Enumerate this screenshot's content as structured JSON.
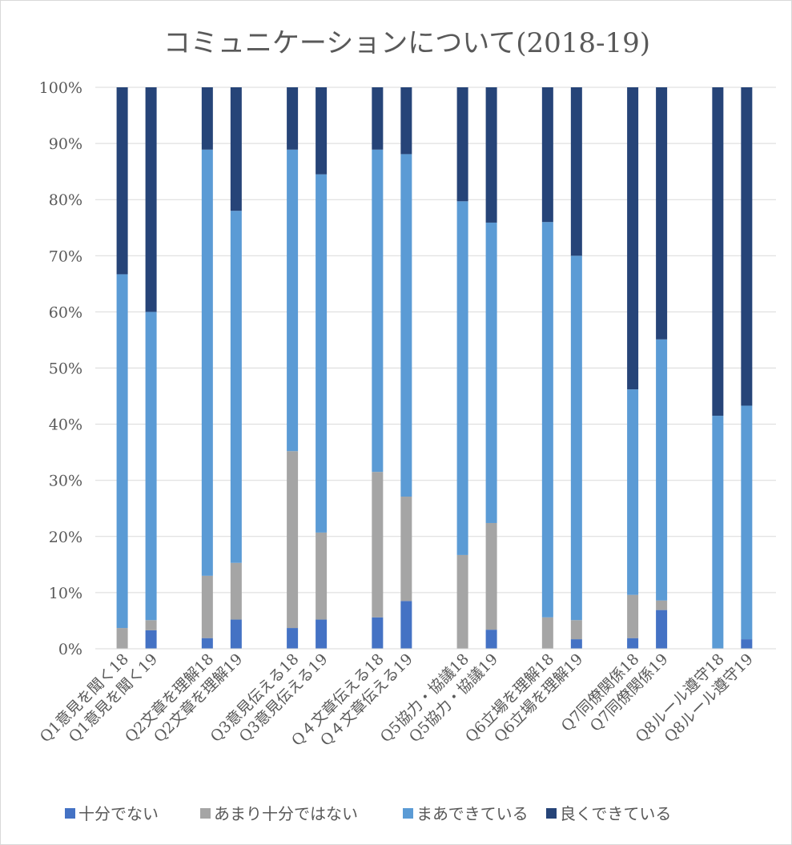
{
  "chart_data": {
    "type": "bar",
    "stacked": "percent",
    "title": "コミュニケーションについて(2018-19)",
    "ylim": [
      0,
      100
    ],
    "y_ticks": [
      "0%",
      "10%",
      "20%",
      "30%",
      "40%",
      "50%",
      "60%",
      "70%",
      "80%",
      "90%",
      "100%"
    ],
    "grid": true,
    "legend_position": "bottom",
    "categories": [
      "Q1意見を聞く18",
      "Q1意見を聞く19",
      "Q2文章を理解18",
      "Q2文章を理解19",
      "Q3意見伝える18",
      "Q3意見伝える19",
      "Q４文章伝える18",
      "Q４文章伝える19",
      "Q5協力・協議18",
      "Q5協力・協議19",
      "Q6立場を理解18",
      "Q6立場を理解19",
      "Q7同僚関係18",
      "Q7同僚関係19",
      "Q8ルール遵守18",
      "Q8ルール遵守19"
    ],
    "series": [
      {
        "name": "十分でない",
        "color": "#4472c4",
        "values": [
          0,
          3.3,
          1.9,
          5.2,
          3.7,
          5.2,
          5.6,
          8.5,
          0,
          3.4,
          0,
          1.7,
          1.9,
          6.9,
          0,
          1.7
        ]
      },
      {
        "name": "あまり十分ではない",
        "color": "#a5a5a5",
        "values": [
          3.7,
          1.8,
          11.1,
          10.1,
          31.5,
          15.5,
          25.9,
          18.6,
          16.7,
          19.0,
          5.6,
          3.4,
          7.7,
          1.7,
          0,
          0
        ]
      },
      {
        "name": "まあできている",
        "color": "#5b9bd5",
        "values": [
          63.0,
          54.9,
          75.9,
          62.7,
          53.7,
          63.8,
          57.4,
          61.0,
          63.0,
          53.5,
          70.4,
          64.9,
          36.6,
          46.5,
          41.5,
          41.6
        ]
      },
      {
        "name": "良くできている",
        "color": "#264478",
        "values": [
          33.3,
          40.0,
          11.1,
          22.0,
          11.1,
          15.5,
          11.1,
          11.9,
          20.3,
          24.1,
          24.0,
          30.0,
          53.8,
          44.9,
          58.5,
          56.7
        ]
      }
    ]
  }
}
